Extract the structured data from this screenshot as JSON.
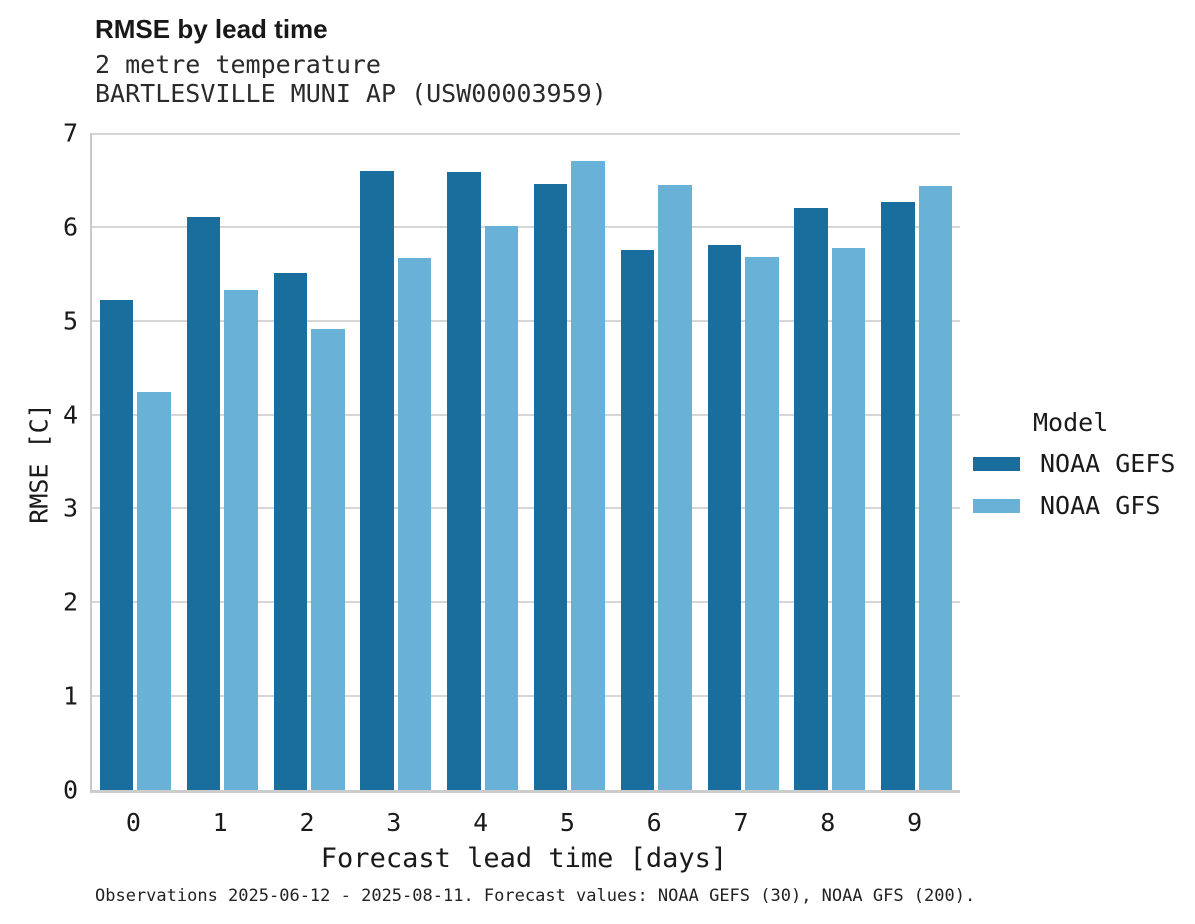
{
  "header": {
    "title": "RMSE by lead time",
    "subtitle_line1": "2 metre temperature",
    "subtitle_line2": "BARTLESVILLE MUNI AP (USW00003959)"
  },
  "footer": {
    "caption": "Observations 2025-06-12 - 2025-08-11. Forecast values: NOAA GEFS (30), NOAA GFS (200)."
  },
  "colors": {
    "series_dark_blue": "#1A6E9D",
    "series_light_blue": "#6AB1D8",
    "gridline": "#d6d6d6",
    "axis": "#c9c9c9",
    "text": "#1a1a1a"
  },
  "chart_data": {
    "type": "bar",
    "title": "RMSE by lead time",
    "subtitle": [
      "2 metre temperature",
      "BARTLESVILLE MUNI AP (USW00003959)"
    ],
    "categories": [
      "0",
      "1",
      "2",
      "3",
      "4",
      "5",
      "6",
      "7",
      "8",
      "9"
    ],
    "series": [
      {
        "name": "NOAA GEFS",
        "color": "#1A6E9D",
        "values": [
          5.22,
          6.11,
          5.51,
          6.59,
          6.58,
          6.46,
          5.75,
          5.81,
          6.2,
          6.27
        ]
      },
      {
        "name": "NOAA GFS",
        "color": "#6AB1D8",
        "values": [
          4.24,
          5.33,
          4.91,
          5.67,
          6.01,
          6.7,
          6.45,
          5.68,
          5.77,
          6.44
        ]
      }
    ],
    "xlabel": "Forecast lead time [days]",
    "ylabel": "RMSE [C]",
    "ylim": [
      0,
      7
    ],
    "yticks": [
      0,
      1,
      2,
      3,
      4,
      5,
      6,
      7
    ],
    "grid": true,
    "legend_title": "Model",
    "legend_position": "right",
    "caption": "Observations 2025-06-12 - 2025-08-11. Forecast values: NOAA GEFS (30), NOAA GFS (200)."
  }
}
